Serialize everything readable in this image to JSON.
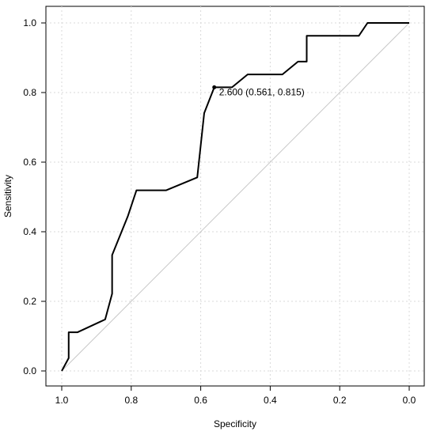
{
  "chart_data": {
    "type": "line",
    "title": "",
    "xlabel": "Specificity",
    "ylabel": "Sensitivity",
    "x_reversed": true,
    "xlim": [
      1.0,
      0.0
    ],
    "ylim": [
      0.0,
      1.0
    ],
    "x_ticks": [
      1.0,
      0.8,
      0.6,
      0.4,
      0.2,
      0.0
    ],
    "x_tick_labels": [
      "1.0",
      "0.8",
      "0.6",
      "0.4",
      "0.2",
      "0.0"
    ],
    "y_ticks": [
      0.0,
      0.2,
      0.4,
      0.6,
      0.8,
      1.0
    ],
    "y_tick_labels": [
      "0.0",
      "0.2",
      "0.4",
      "0.6",
      "0.8",
      "1.0"
    ],
    "grid": true,
    "series": [
      {
        "type": "roc",
        "color": "#000000",
        "points": [
          [
            1.0,
            0.0
          ],
          [
            0.98,
            0.037
          ],
          [
            0.98,
            0.111
          ],
          [
            0.955,
            0.111
          ],
          [
            0.875,
            0.148
          ],
          [
            0.855,
            0.222
          ],
          [
            0.855,
            0.333
          ],
          [
            0.81,
            0.444
          ],
          [
            0.785,
            0.519
          ],
          [
            0.7,
            0.519
          ],
          [
            0.61,
            0.556
          ],
          [
            0.59,
            0.741
          ],
          [
            0.561,
            0.815
          ],
          [
            0.51,
            0.815
          ],
          [
            0.465,
            0.852
          ],
          [
            0.365,
            0.852
          ],
          [
            0.32,
            0.889
          ],
          [
            0.295,
            0.889
          ],
          [
            0.295,
            0.963
          ],
          [
            0.145,
            0.963
          ],
          [
            0.12,
            1.0
          ],
          [
            0.0,
            1.0
          ]
        ]
      },
      {
        "type": "reference",
        "color": "#c8c8c8",
        "points": [
          [
            1.0,
            0.0
          ],
          [
            0.0,
            1.0
          ]
        ]
      }
    ],
    "annotation": {
      "text": "2.600 (0.561, 0.815)",
      "x": 0.561,
      "y": 0.815
    }
  }
}
